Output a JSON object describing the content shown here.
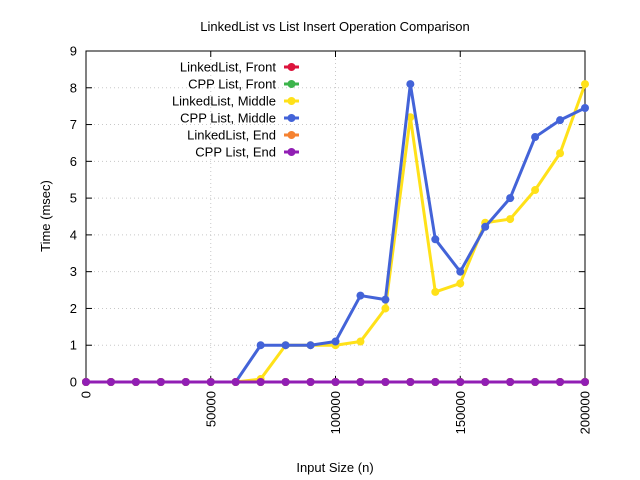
{
  "chart_data": {
    "type": "line",
    "title": "LinkedList vs List Insert Operation Comparison",
    "xlabel": "Input Size (n)",
    "ylabel": "Time (msec)",
    "xlim": [
      0,
      200000
    ],
    "ylim": [
      0,
      9
    ],
    "xticks": [
      0,
      50000,
      100000,
      150000,
      200000
    ],
    "yticks": [
      0,
      1,
      2,
      3,
      4,
      5,
      6,
      7,
      8,
      9
    ],
    "grid": true,
    "legend_position": "top-left",
    "x": [
      0,
      10000,
      20000,
      30000,
      40000,
      50000,
      60000,
      70000,
      80000,
      90000,
      100000,
      110000,
      120000,
      130000,
      140000,
      150000,
      160000,
      170000,
      180000,
      190000,
      200000
    ],
    "series": [
      {
        "name": "LinkedList, Front",
        "color": "#dc143c",
        "values": [
          0,
          0,
          0,
          0,
          0,
          0,
          0,
          0,
          0,
          0,
          0,
          0,
          0,
          0,
          0,
          0,
          0,
          0,
          0,
          0,
          0
        ]
      },
      {
        "name": "CPP List, Front",
        "color": "#3cb44b",
        "values": [
          0,
          0,
          0,
          0,
          0,
          0,
          0,
          0,
          0,
          0,
          0,
          0,
          0,
          0,
          0,
          0,
          0,
          0,
          0,
          0,
          0
        ]
      },
      {
        "name": "LinkedList, Middle",
        "color": "#ffe119",
        "values": [
          0,
          0,
          0,
          0,
          0,
          0,
          0,
          0.08,
          1,
          1,
          1,
          1.1,
          2,
          7.2,
          2.45,
          2.68,
          4.33,
          4.43,
          5.22,
          6.22,
          8.1
        ]
      },
      {
        "name": "CPP List, Middle",
        "color": "#4363d8",
        "values": [
          0,
          0,
          0,
          0,
          0,
          0,
          0,
          1,
          1,
          1,
          1.1,
          2.35,
          2.24,
          8.1,
          3.88,
          3,
          4.22,
          5,
          6.66,
          7.12,
          7.45
        ]
      },
      {
        "name": "LinkedList, End",
        "color": "#f58231",
        "values": [
          0,
          0,
          0,
          0,
          0,
          0,
          0,
          0,
          0,
          0,
          0,
          0,
          0,
          0,
          0,
          0,
          0,
          0,
          0,
          0,
          0
        ]
      },
      {
        "name": "CPP List, End",
        "color": "#911eb4",
        "values": [
          0,
          0,
          0,
          0,
          0,
          0,
          0,
          0,
          0,
          0,
          0,
          0,
          0,
          0,
          0,
          0,
          0,
          0,
          0,
          0,
          0
        ]
      }
    ]
  }
}
